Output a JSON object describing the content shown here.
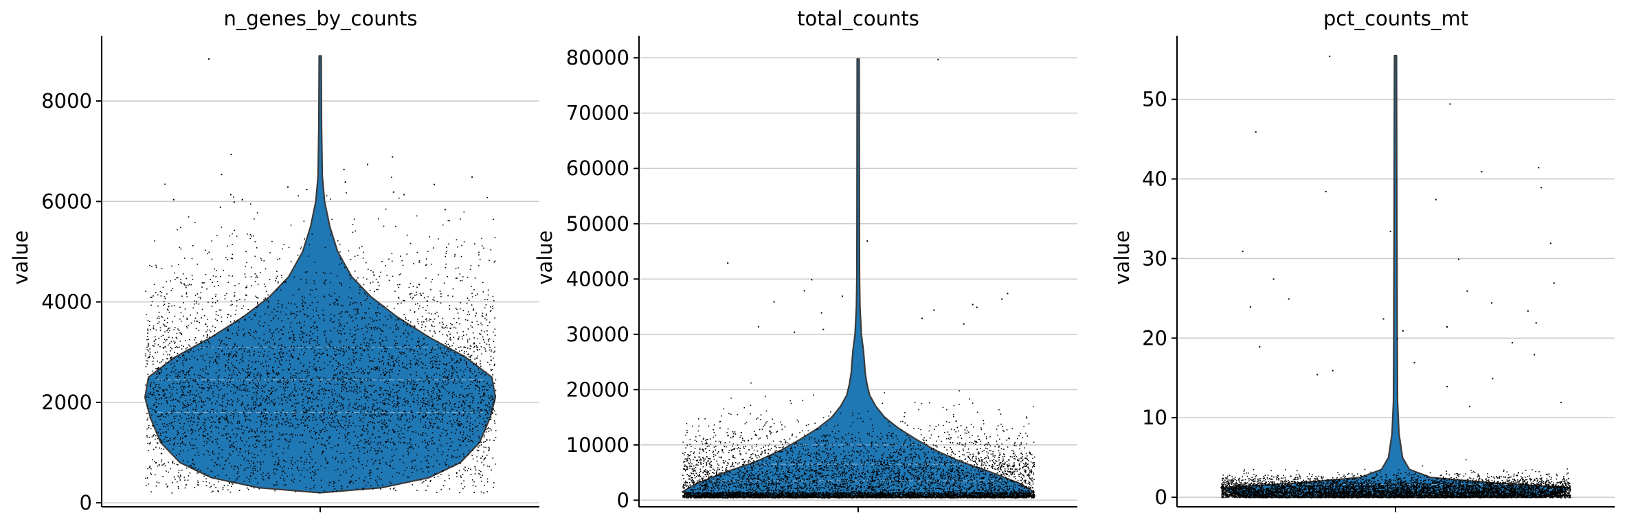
{
  "chart_data": [
    {
      "type": "violin",
      "title": "n_genes_by_counts",
      "ylabel": "value",
      "ylim": [
        -80,
        9300
      ],
      "yticks": [
        0,
        2000,
        4000,
        6000,
        8000
      ],
      "grid": true,
      "color": "#1f77b4",
      "distribution": {
        "min": 200,
        "max": 8900,
        "q1": 1800,
        "median": 2450,
        "q3": 3100
      },
      "violin_profile": [
        [
          200,
          0.0
        ],
        [
          300,
          0.35
        ],
        [
          500,
          0.62
        ],
        [
          800,
          0.8
        ],
        [
          1200,
          0.91
        ],
        [
          1700,
          0.97
        ],
        [
          2100,
          1.0
        ],
        [
          2500,
          0.98
        ],
        [
          2900,
          0.83
        ],
        [
          3300,
          0.62
        ],
        [
          3700,
          0.44
        ],
        [
          4100,
          0.29
        ],
        [
          4500,
          0.18
        ],
        [
          5000,
          0.1
        ],
        [
          5500,
          0.055
        ],
        [
          6000,
          0.025
        ],
        [
          6500,
          0.012
        ],
        [
          7500,
          0.008
        ],
        [
          8900,
          0.006
        ]
      ],
      "jitter": {
        "count": 5000,
        "mode": 2300,
        "spread_low": 1100,
        "spread_high": 1300,
        "outliers": [
          5850,
          5900,
          6000,
          6050,
          6150,
          6200,
          6300,
          6400,
          6500,
          6550,
          6650,
          6750,
          6900,
          6950,
          6050,
          6150,
          6250,
          6350,
          8850
        ]
      }
    },
    {
      "type": "violin",
      "title": "total_counts",
      "ylabel": "value",
      "ylim": [
        -1200,
        84000
      ],
      "yticks": [
        0,
        10000,
        20000,
        30000,
        40000,
        50000,
        60000,
        70000,
        80000
      ],
      "grid": true,
      "color": "#1f77b4",
      "distribution": {
        "min": 500,
        "max": 79800,
        "q1": 3500,
        "median": 6500,
        "q3": 10000
      },
      "violin_profile": [
        [
          500,
          0.92
        ],
        [
          1500,
          1.0
        ],
        [
          3000,
          0.92
        ],
        [
          5000,
          0.76
        ],
        [
          7000,
          0.58
        ],
        [
          9000,
          0.44
        ],
        [
          11000,
          0.33
        ],
        [
          13000,
          0.23
        ],
        [
          15000,
          0.15
        ],
        [
          17000,
          0.1
        ],
        [
          19000,
          0.065
        ],
        [
          21000,
          0.05
        ],
        [
          23000,
          0.04
        ],
        [
          25000,
          0.035
        ],
        [
          27000,
          0.03
        ],
        [
          30000,
          0.018
        ],
        [
          35000,
          0.01
        ],
        [
          40000,
          0.008
        ],
        [
          50000,
          0.007
        ],
        [
          79800,
          0.006
        ]
      ],
      "jitter": {
        "count": 7000,
        "mode": 1500,
        "spread_low": 900,
        "spread_high": 5500,
        "outliers": [
          30500,
          31000,
          31500,
          32000,
          33000,
          34000,
          34500,
          35000,
          35500,
          36000,
          36500,
          37000,
          37500,
          38000,
          40000,
          43000,
          47000,
          79800
        ]
      }
    },
    {
      "type": "violin",
      "title": "pct_counts_mt",
      "ylabel": "value",
      "ylim": [
        -1.2,
        58
      ],
      "yticks": [
        0,
        10,
        20,
        30,
        40,
        50
      ],
      "grid": true,
      "color": "#1f77b4",
      "distribution": {
        "min": 0.0,
        "max": 55.5,
        "q1": 0.4,
        "median": 0.9,
        "q3": 1.6
      },
      "violin_profile": [
        [
          0.0,
          0.85
        ],
        [
          0.6,
          0.95
        ],
        [
          1.2,
          1.0
        ],
        [
          1.8,
          0.55
        ],
        [
          2.5,
          0.2
        ],
        [
          3.5,
          0.08
        ],
        [
          5.0,
          0.04
        ],
        [
          8.0,
          0.02
        ],
        [
          12.0,
          0.012
        ],
        [
          20.0,
          0.01
        ],
        [
          35.0,
          0.008
        ],
        [
          55.5,
          0.006
        ]
      ],
      "jitter": {
        "count": 7000,
        "mode": 0.8,
        "spread_low": 0.6,
        "spread_high": 0.9,
        "outliers": [
          11.5,
          12,
          14,
          15,
          15.5,
          16,
          17,
          18,
          19,
          19.5,
          20,
          21,
          21.5,
          22,
          22.5,
          23.5,
          24,
          24.5,
          25,
          26,
          27,
          27.5,
          30,
          31,
          32,
          33.5,
          37.5,
          38.5,
          39,
          41,
          41.5,
          46,
          49.5,
          55.5
        ]
      }
    }
  ]
}
